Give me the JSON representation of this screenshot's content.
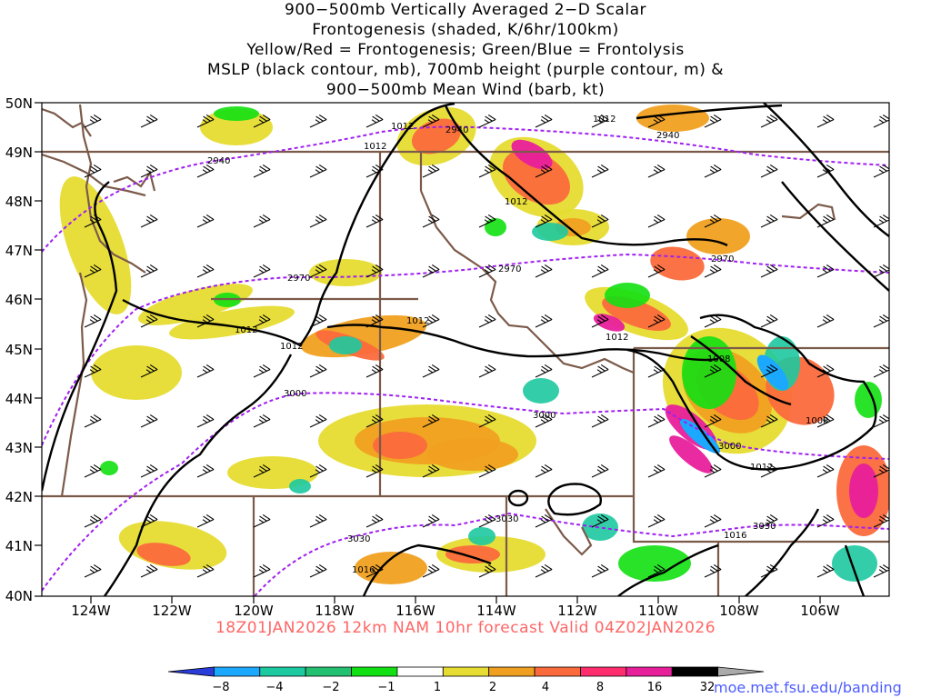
{
  "title_lines": [
    "900−500mb Vertically Averaged 2−D Scalar",
    "Frontogenesis (shaded, K/6hr/100km)",
    "Yellow/Red = Frontogenesis;  Green/Blue = Frontolysis",
    "MSLP (black contour, mb), 700mb height (purple contour, m) &",
    "900−500mb Mean Wind (barb, kt)"
  ],
  "lat_labels": [
    "50N",
    "49N",
    "48N",
    "47N",
    "46N",
    "45N",
    "44N",
    "43N",
    "42N",
    "41N",
    "40N"
  ],
  "lon_labels": [
    "124W",
    "122W",
    "120W",
    "118W",
    "116W",
    "114W",
    "112W",
    "110W",
    "108W",
    "106W"
  ],
  "mslp_labels": [
    "1012",
    "1012",
    "1012",
    "1012",
    "1012",
    "1012",
    "1012",
    "1012",
    "1008",
    "1008",
    "1012",
    "1016",
    "1016"
  ],
  "height_labels": [
    "2940",
    "2940",
    "2940",
    "2970",
    "2970",
    "2970",
    "3000",
    "3000",
    "3000",
    "3030",
    "3030",
    "3030"
  ],
  "valid_text": "18Z01JAN2026 12km NAM 10hr forecast Valid 04Z02JAN2026",
  "colorbar_labels": [
    "−8",
    "−4",
    "−2",
    "−1",
    "1",
    "2",
    "4",
    "8",
    "16",
    "32"
  ],
  "colorbar_colors": [
    "#2a3dd9",
    "#1ba8ff",
    "#1dc9a0",
    "#22c070",
    "#12e012",
    "#ffffff",
    "#e6dc32",
    "#f0a020",
    "#fb6a3c",
    "#ff2d6e",
    "#e81f9b",
    "#000000",
    "#aaaaaa"
  ],
  "credit": "moe.met.fsu.edu/banding",
  "colors": {
    "state_borders": "#7b5a4a",
    "mslp_contour": "#000000",
    "height_contour": "#a020f0",
    "frontogenesis": [
      "#e6dc32",
      "#f0a020",
      "#fb6a3c",
      "#e81f9b"
    ],
    "frontolysis": [
      "#12e012",
      "#1dc9a0",
      "#1ba8ff",
      "#2a3dd9"
    ]
  }
}
